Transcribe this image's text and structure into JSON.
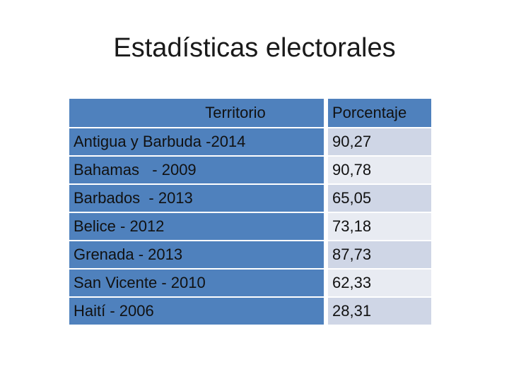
{
  "title": "Estadísticas electorales",
  "colors": {
    "header_blue": "#4f81bd",
    "row_light_1": "#cfd6e6",
    "row_light_2": "#e8ebf2"
  },
  "table": {
    "headers": [
      "Territorio",
      "Porcentaje"
    ],
    "rows": [
      [
        "Antigua y Barbuda -2014",
        "90,27"
      ],
      [
        "Bahamas   - 2009",
        "90,78"
      ],
      [
        "Barbados  - 2013",
        "65,05"
      ],
      [
        "Belice - 2012",
        "73,18"
      ],
      [
        "Grenada - 2013",
        "87,73"
      ],
      [
        "San Vicente - 2010",
        "62,33"
      ],
      [
        "Haití - 2006",
        "28,31"
      ]
    ]
  }
}
